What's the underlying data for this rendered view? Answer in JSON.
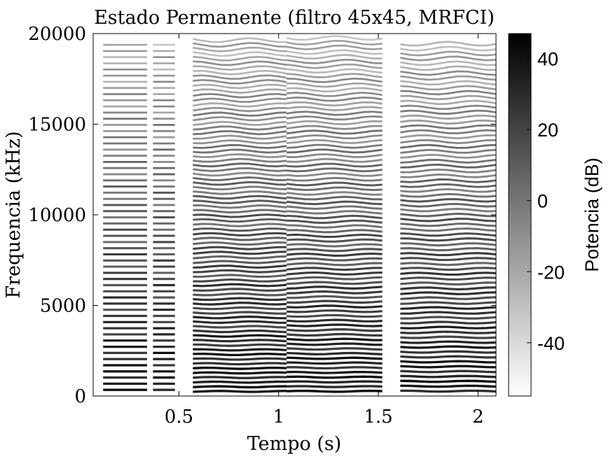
{
  "chart_data": {
    "type": "heatmap",
    "title": "Estado Permanente (filtro 45x45, MRFCI)",
    "xlabel": "Tempo (s)",
    "ylabel": "Frequencia (kHz)",
    "xlim": [
      0.07,
      2.09
    ],
    "ylim": [
      0,
      20000
    ],
    "x_ticks": [
      0.5,
      1,
      1.5,
      2
    ],
    "x_tick_labels": [
      "0.5",
      "1",
      "1.5",
      "2"
    ],
    "y_ticks": [
      0,
      5000,
      10000,
      15000,
      20000
    ],
    "y_tick_labels": [
      "0",
      "5000",
      "10000",
      "15000",
      "20000"
    ],
    "colorbar": {
      "label": "Potencia (dB)",
      "range": [
        -55,
        47
      ],
      "ticks": [
        -40,
        -20,
        0,
        20,
        40
      ],
      "tick_labels": [
        "-40",
        "-20",
        "0",
        "20",
        "40"
      ],
      "colormap": "gray-reversed"
    },
    "segments": [
      {
        "t_start": 0.12,
        "t_end": 0.34,
        "f0_hz": 340,
        "max_freq_hz": 19600
      },
      {
        "t_start": 0.37,
        "t_end": 0.48,
        "f0_hz": 340,
        "max_freq_hz": 19400
      },
      {
        "t_start": 0.57,
        "t_end": 1.04,
        "f0_hz": 255,
        "max_freq_hz": 19800
      },
      {
        "t_start": 1.04,
        "t_end": 1.52,
        "f0_hz": 260,
        "max_freq_hz": 19800
      },
      {
        "t_start": 1.61,
        "t_end": 2.09,
        "f0_hz": 270,
        "max_freq_hz": 19600
      }
    ],
    "grid": false,
    "legend": "none"
  }
}
